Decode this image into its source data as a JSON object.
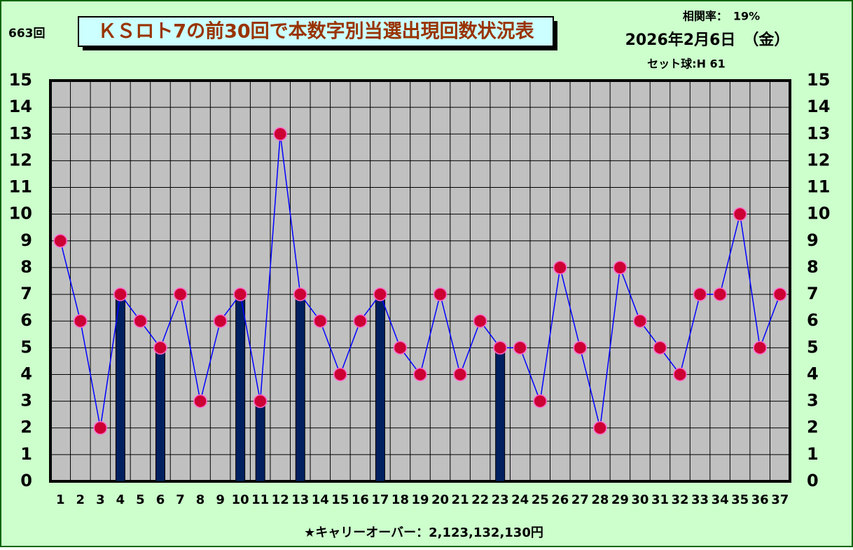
{
  "header": {
    "draw": "663回",
    "correlation": "相関率：　19%",
    "date": "2026年2月6日　（金）",
    "set_ball": "セット球:H 61"
  },
  "footer": "★キャリーオーバー：2,123,132,130円",
  "chart_data": {
    "type": "combo",
    "title": "ＫＳロト7の前30回で本数字別当選出現回数状況表",
    "categories": [
      "1",
      "2",
      "3",
      "4",
      "5",
      "6",
      "7",
      "8",
      "9",
      "10",
      "11",
      "12",
      "13",
      "14",
      "15",
      "16",
      "17",
      "18",
      "19",
      "20",
      "21",
      "22",
      "23",
      "24",
      "25",
      "26",
      "27",
      "28",
      "29",
      "30",
      "31",
      "32",
      "33",
      "34",
      "35",
      "36",
      "37"
    ],
    "series": [
      {
        "type": "bar",
        "color": "#002060",
        "values": [
          null,
          null,
          null,
          7,
          null,
          5,
          null,
          null,
          null,
          7,
          3,
          null,
          7,
          null,
          null,
          null,
          7,
          null,
          null,
          null,
          null,
          null,
          5,
          null,
          null,
          null,
          null,
          null,
          null,
          null,
          null,
          null,
          null,
          null,
          null,
          null,
          null
        ]
      },
      {
        "type": "line",
        "color": "#0000ff",
        "marker_color": "#cc0033",
        "values": [
          9,
          6,
          2,
          7,
          6,
          5,
          7,
          3,
          6,
          7,
          3,
          13,
          7,
          6,
          4,
          6,
          7,
          5,
          4,
          7,
          4,
          6,
          5,
          5,
          3,
          8,
          5,
          2,
          8,
          6,
          5,
          4,
          7,
          7,
          10,
          5,
          7
        ]
      }
    ],
    "ylim": [
      0,
      15
    ],
    "yticks": [
      0,
      1,
      2,
      3,
      4,
      5,
      6,
      7,
      8,
      9,
      10,
      11,
      12,
      13,
      14,
      15
    ],
    "grid": true
  }
}
